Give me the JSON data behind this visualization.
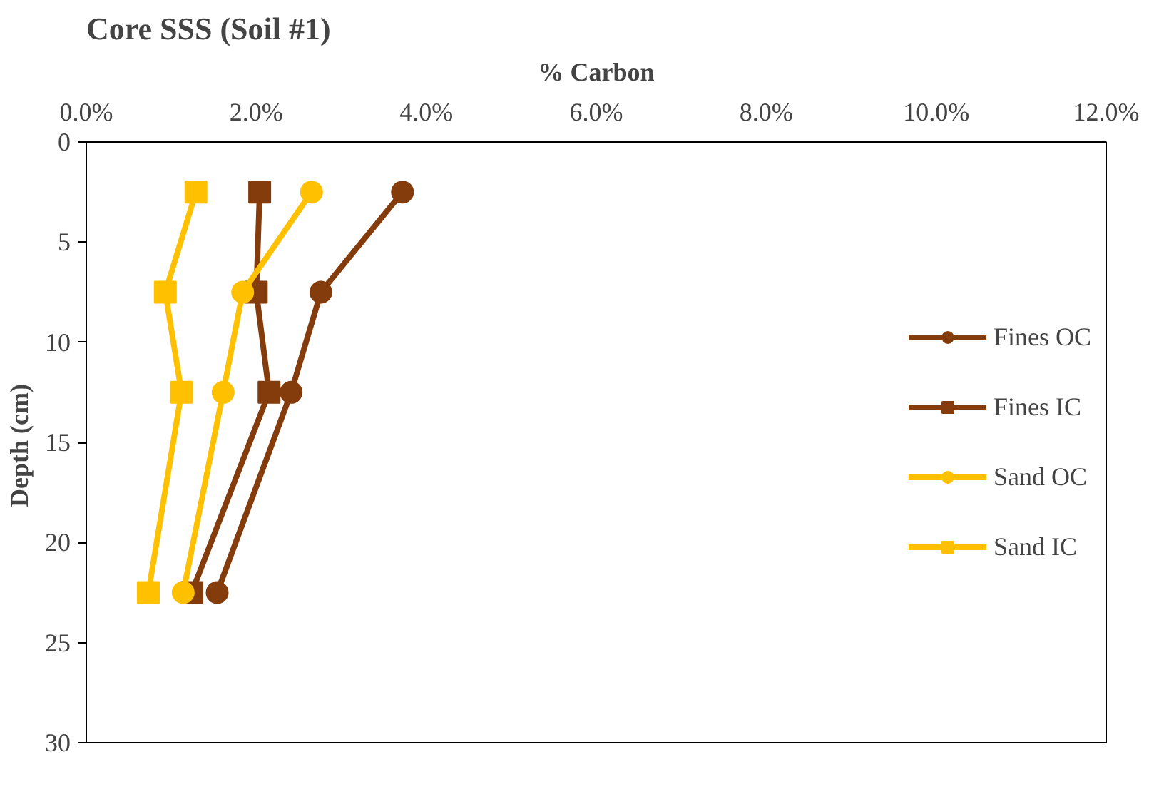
{
  "chart_data": {
    "type": "line",
    "title": "Core SSS (Soil #1)",
    "xlabel": "% Carbon",
    "ylabel": "Depth  (cm)",
    "series": [
      {
        "name": "Fines OC",
        "color": "#843c0c",
        "marker": "circle",
        "x": [
          3.72,
          2.76,
          2.41,
          1.54
        ],
        "values": [
          2.5,
          7.5,
          12.5,
          22.5
        ]
      },
      {
        "name": "Fines IC",
        "color": "#843c0c",
        "marker": "square",
        "x": [
          2.04,
          2.0,
          2.15,
          1.24
        ],
        "values": [
          2.5,
          7.5,
          12.5,
          22.5
        ]
      },
      {
        "name": "Sand OC",
        "color": "#ffc000",
        "marker": "circle",
        "x": [
          2.65,
          1.84,
          1.61,
          1.14
        ],
        "values": [
          2.5,
          7.5,
          12.5,
          22.5
        ]
      },
      {
        "name": "Sand IC",
        "color": "#ffc000",
        "marker": "square",
        "x": [
          1.29,
          0.93,
          1.12,
          0.73
        ],
        "values": [
          2.5,
          7.5,
          12.5,
          22.5
        ]
      }
    ],
    "xlim": [
      0,
      12
    ],
    "xticks": [
      {
        "value": 0,
        "label": "0.0%"
      },
      {
        "value": 2,
        "label": "2.0%"
      },
      {
        "value": 4,
        "label": "4.0%"
      },
      {
        "value": 6,
        "label": "6.0%"
      },
      {
        "value": 8,
        "label": "8.0%"
      },
      {
        "value": 10,
        "label": "10.0%"
      },
      {
        "value": 12,
        "label": "12.0%"
      }
    ],
    "ylim": [
      30,
      0
    ],
    "yticks": [
      0,
      5,
      10,
      15,
      20,
      25,
      30
    ],
    "grid": false,
    "legend": "right",
    "line_style": "solid"
  }
}
